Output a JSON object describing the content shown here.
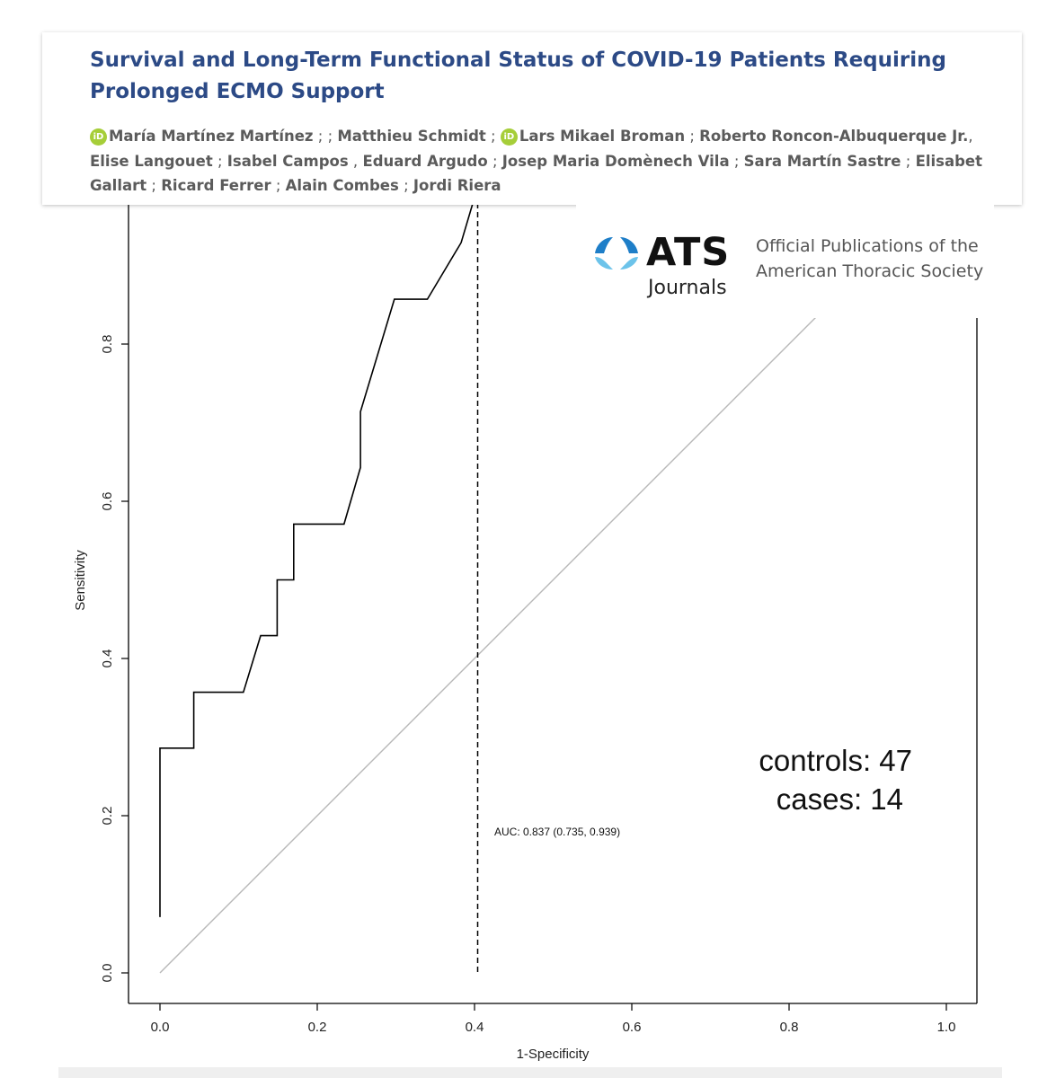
{
  "header": {
    "title": "Survival and Long-Term Functional Status of COVID-19 Patients Requiring Prolonged ECMO Support",
    "orcid_icon": "orcid-icon",
    "authors": [
      {
        "name": "María Martínez Martínez",
        "orcid": true,
        "sep": " ; ; "
      },
      {
        "name": "Matthieu Schmidt",
        "orcid": false,
        "sep": " ; "
      },
      {
        "name": "Lars Mikael Broman",
        "orcid": true,
        "sep": " ; "
      },
      {
        "name": "Roberto Roncon-Albuquerque Jr.",
        "orcid": false,
        "sep": ", "
      },
      {
        "name": "Elise Langouet",
        "orcid": false,
        "sep": " ; "
      },
      {
        "name": "Isabel Campos",
        "orcid": false,
        "sep": " , "
      },
      {
        "name": "Eduard Argudo",
        "orcid": false,
        "sep": " ; "
      },
      {
        "name": "Josep Maria Domènech Vila",
        "orcid": false,
        "sep": " ; "
      },
      {
        "name": "Sara Martín Sastre",
        "orcid": false,
        "sep": " ; "
      },
      {
        "name": "Elisabet Gallart",
        "orcid": false,
        "sep": " ; "
      },
      {
        "name": "Ricard Ferrer",
        "orcid": false,
        "sep": " ; "
      },
      {
        "name": "Alain Combes",
        "orcid": false,
        "sep": " ; "
      },
      {
        "name": "Jordi Riera",
        "orcid": false,
        "sep": ""
      }
    ],
    "title_color": "#2c4a86",
    "orcid_color": "#a6ce39"
  },
  "ats": {
    "brand": "ATS",
    "sub": "Journals",
    "tagline_1": "Official Publications of the",
    "tagline_2": "American Thoracic Society",
    "logo_colors": [
      "#1e7ec8",
      "#6cc3ea"
    ]
  },
  "chart_data": {
    "type": "line",
    "xlabel": "1-Specificity",
    "ylabel": "Sensitivity",
    "xlim": [
      0,
      1
    ],
    "ylim": [
      0,
      1
    ],
    "x_ticks": [
      "0.0",
      "0.2",
      "0.4",
      "0.6",
      "0.8",
      "1.0"
    ],
    "y_ticks": [
      "0.0",
      "0.2",
      "0.4",
      "0.6",
      "0.8"
    ],
    "series": [
      {
        "x": [
          0.0,
          0.0,
          0.043,
          0.043,
          0.106,
          0.128,
          0.149,
          0.149,
          0.17,
          0.17,
          0.234,
          0.255,
          0.255,
          0.298,
          0.34,
          0.383,
          0.404
        ],
        "y": [
          0.071,
          0.286,
          0.286,
          0.357,
          0.357,
          0.429,
          0.429,
          0.5,
          0.5,
          0.571,
          0.571,
          0.643,
          0.714,
          0.857,
          0.857,
          0.929,
          1.0
        ],
        "color": "#000000"
      }
    ],
    "reference_line": {
      "x": [
        0,
        1
      ],
      "y": [
        0,
        1
      ],
      "color": "#b8b8b8"
    },
    "threshold_x": 0.404,
    "annotations": {
      "auc": "AUC: 0.837 (0.735, 0.939)",
      "controls": "controls: 47",
      "cases": "cases: 14"
    }
  }
}
